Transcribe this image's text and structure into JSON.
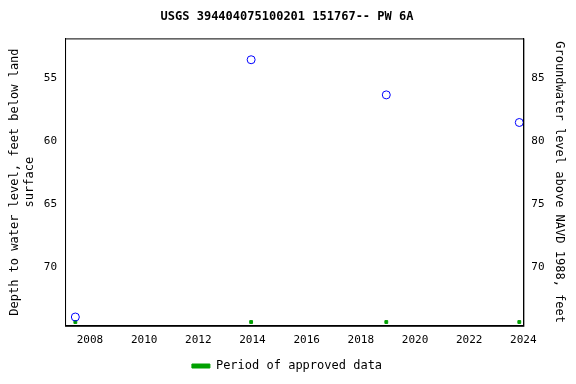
{
  "chart_data": {
    "type": "scatter",
    "title": "USGS 394404075100201 151767-- PW 6A",
    "y_label": [
      "Depth to water level, feet below land",
      "surface"
    ],
    "y2_label": "Groundwater level above NAVD 1988, feet",
    "x": [
      2007.46,
      2013.95,
      2018.94,
      2023.85
    ],
    "series": [
      {
        "color": "#0000ff",
        "marker": "circle",
        "values": [
          74.0,
          53.5,
          56.3,
          58.5
        ]
      },
      {
        "name": "Period of approved data",
        "color": "#00a000",
        "marker": "rect",
        "values": [
          74.4,
          74.4,
          74.4,
          74.4
        ]
      }
    ],
    "xlim": [
      2007.08,
      2024.0
    ],
    "xticks": [
      2008,
      2010,
      2012,
      2014,
      2016,
      2018,
      2020,
      2022,
      2024
    ],
    "ylim": [
      74.7,
      51.8
    ],
    "yticks": [
      55,
      60,
      65,
      70
    ],
    "y2lim": [
      65.3,
      88.2
    ],
    "y2ticks": [
      70,
      75,
      80,
      85
    ],
    "grid": false,
    "legend": "bottom"
  }
}
